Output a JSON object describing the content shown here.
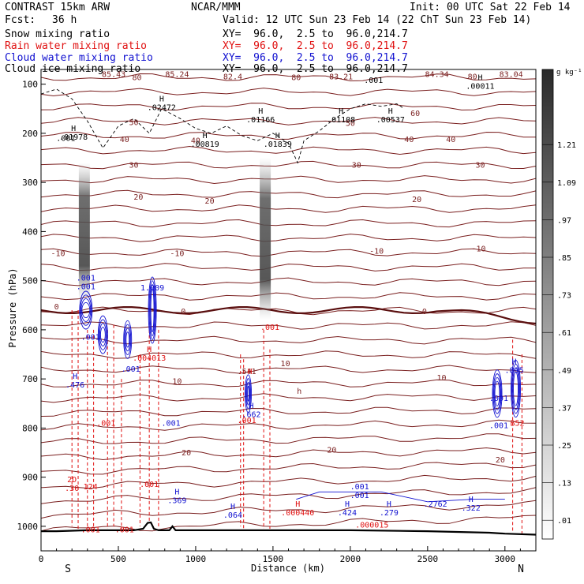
{
  "header": {
    "model": "CONTRAST 15km ARW",
    "center": "NCAR/MMM",
    "init": "Init: 00 UTC Sat 22 Feb 14",
    "fcst_label": "Fcst:",
    "fcst_value": "36 h",
    "valid": "Valid: 12 UTC Sun 23 Feb 14 (22 ChT Sun 23 Feb 14)"
  },
  "fields": [
    {
      "name": "Snow mixing ratio",
      "xy": "XY=  96.0,  2.5 to  96.0,214.7",
      "color": "#000000"
    },
    {
      "name": "Rain water mixing ratio",
      "xy": "XY=  96.0,  2.5 to  96.0,214.7",
      "color": "#e01010"
    },
    {
      "name": "Cloud water mixing ratio",
      "xy": "XY=  96.0,  2.5 to  96.0,214.7",
      "color": "#1010d0"
    },
    {
      "name": "Cloud ice mixing ratio",
      "xy": "XY=  96.0,  2.5 to  96.0,214.7",
      "color": "#000000"
    }
  ],
  "colorbar": {
    "unit": "g kg⁻¹",
    "ticks": [
      ".01",
      ".13",
      ".25",
      ".37",
      ".49",
      ".61",
      ".73",
      ".85",
      ".97",
      "1.09",
      "1.21"
    ]
  },
  "chart_data": {
    "type": "cross-section",
    "xlabel": "Distance (km)",
    "ylabel": "Pressure (hPa)",
    "xlim": [
      0,
      3200
    ],
    "ylim": [
      1050,
      70
    ],
    "x_ticks": [
      "0",
      "500",
      "1000",
      "1500",
      "2000",
      "2500",
      "3000"
    ],
    "y_ticks": [
      "100",
      "200",
      "300",
      "400",
      "500",
      "600",
      "700",
      "800",
      "900",
      "1000"
    ],
    "ends": {
      "left": "S",
      "right": "N"
    },
    "temperature_labels": [
      {
        "x": 470,
        "p": 85,
        "text": "85.43"
      },
      {
        "x": 880,
        "p": 85,
        "text": "85.24"
      },
      {
        "x": 1240,
        "p": 90,
        "text": "82.4"
      },
      {
        "x": 1940,
        "p": 90,
        "text": "83.21"
      },
      {
        "x": 2560,
        "p": 85,
        "text": "84.34"
      },
      {
        "x": 3040,
        "p": 85,
        "text": "83.04"
      },
      {
        "x": 620,
        "p": 92,
        "text": "80"
      },
      {
        "x": 1650,
        "p": 92,
        "text": "80"
      },
      {
        "x": 2790,
        "p": 90,
        "text": "80"
      },
      {
        "x": 2420,
        "p": 165,
        "text": "60"
      },
      {
        "x": 600,
        "p": 183,
        "text": "50"
      },
      {
        "x": 2000,
        "p": 185,
        "text": "50"
      },
      {
        "x": 540,
        "p": 218,
        "text": "40"
      },
      {
        "x": 1000,
        "p": 220,
        "text": "40"
      },
      {
        "x": 2380,
        "p": 218,
        "text": "40"
      },
      {
        "x": 2650,
        "p": 218,
        "text": "40"
      },
      {
        "x": 600,
        "p": 270,
        "text": "30"
      },
      {
        "x": 2040,
        "p": 270,
        "text": "30"
      },
      {
        "x": 2840,
        "p": 270,
        "text": "30"
      },
      {
        "x": 630,
        "p": 335,
        "text": "20"
      },
      {
        "x": 1090,
        "p": 343,
        "text": "20"
      },
      {
        "x": 2430,
        "p": 340,
        "text": "20"
      },
      {
        "x": 110,
        "p": 450,
        "text": "-10"
      },
      {
        "x": 880,
        "p": 450,
        "text": "-10"
      },
      {
        "x": 2170,
        "p": 445,
        "text": "-10"
      },
      {
        "x": 2830,
        "p": 440,
        "text": "-10"
      },
      {
        "x": 100,
        "p": 558,
        "text": "0"
      },
      {
        "x": 920,
        "p": 568,
        "text": "0"
      },
      {
        "x": 2480,
        "p": 568,
        "text": "0"
      },
      {
        "x": 1580,
        "p": 674,
        "text": "10"
      },
      {
        "x": 880,
        "p": 710,
        "text": "10"
      },
      {
        "x": 2590,
        "p": 703,
        "text": "10"
      },
      {
        "x": 940,
        "p": 856,
        "text": "20"
      },
      {
        "x": 1880,
        "p": 850,
        "text": "20"
      },
      {
        "x": 2970,
        "p": 870,
        "text": "20"
      },
      {
        "x": 1670,
        "p": 730,
        "text": "h"
      },
      {
        "x": 1330,
        "p": 690,
        "text": ".541"
      }
    ],
    "cloud_ice_labels": [
      {
        "x": 210,
        "p": 195,
        "text": "H",
        "sub": ".01978"
      },
      {
        "x": 780,
        "p": 135,
        "text": "H",
        "sub": ".02472"
      },
      {
        "x": 1420,
        "p": 160,
        "text": "H",
        "sub": ".01166"
      },
      {
        "x": 1060,
        "p": 210,
        "text": "H",
        "sub": ".00819"
      },
      {
        "x": 1530,
        "p": 210,
        "text": "H",
        "sub": ".01839"
      },
      {
        "x": 1940,
        "p": 160,
        "text": "H",
        "sub": ".01108"
      },
      {
        "x": 2260,
        "p": 160,
        "text": "H",
        "sub": ".00537"
      },
      {
        "x": 2840,
        "p": 92,
        "text": "H",
        "sub": ".00011"
      },
      {
        "x": 2150,
        "p": 97,
        "text": ".001",
        "sub": ""
      },
      {
        "x": 160,
        "p": 215,
        "text": ".001",
        "sub": ""
      }
    ],
    "rain_labels": [
      {
        "x": 200,
        "p": 910,
        "text": "2D",
        "sub": ".30"
      },
      {
        "x": 320,
        "p": 925,
        "text": "124",
        "sub": ""
      },
      {
        "x": 700,
        "p": 645,
        "text": "H",
        "sub": ".004013"
      },
      {
        "x": 1350,
        "p": 690,
        "text": "H",
        "sub": ""
      },
      {
        "x": 1480,
        "p": 600,
        "text": ".001",
        "sub": ""
      },
      {
        "x": 1660,
        "p": 960,
        "text": "H",
        "sub": ".000440"
      },
      {
        "x": 2140,
        "p": 985,
        "text": "",
        "sub": ".000015"
      },
      {
        "x": 1330,
        "p": 790,
        "text": ".001",
        "sub": ""
      },
      {
        "x": 420,
        "p": 795,
        "text": ".001",
        "sub": ""
      },
      {
        "x": 700,
        "p": 920,
        "text": ".001",
        "sub": ""
      },
      {
        "x": 320,
        "p": 1012,
        "text": ".001",
        "sub": ""
      },
      {
        "x": 540,
        "p": 1012,
        "text": ".001",
        "sub": ""
      },
      {
        "x": 3080,
        "p": 795,
        "text": "B52",
        "sub": ""
      }
    ],
    "cloud_water_labels": [
      {
        "x": 220,
        "p": 700,
        "text": "H",
        "sub": ".476"
      },
      {
        "x": 290,
        "p": 500,
        "text": ".001",
        "sub": ".001"
      },
      {
        "x": 720,
        "p": 520,
        "text": "1.009",
        "sub": ""
      },
      {
        "x": 880,
        "p": 935,
        "text": "H",
        "sub": ".369"
      },
      {
        "x": 1240,
        "p": 965,
        "text": "H",
        "sub": ".064"
      },
      {
        "x": 1360,
        "p": 760,
        "text": "H",
        "sub": ".662"
      },
      {
        "x": 1980,
        "p": 960,
        "text": "H",
        "sub": ".424"
      },
      {
        "x": 2060,
        "p": 925,
        "text": ".001",
        "sub": ".001"
      },
      {
        "x": 2250,
        "p": 960,
        "text": "H",
        "sub": ".279"
      },
      {
        "x": 2550,
        "p": 960,
        "text": ".2762",
        "sub": ""
      },
      {
        "x": 2780,
        "p": 950,
        "text": "H",
        "sub": ".322"
      },
      {
        "x": 3060,
        "p": 670,
        "text": "H",
        "sub": ".895"
      },
      {
        "x": 2960,
        "p": 745,
        "text": ".001",
        "sub": ""
      },
      {
        "x": 2960,
        "p": 800,
        "text": ".001",
        "sub": ""
      },
      {
        "x": 840,
        "p": 795,
        "text": ".001",
        "sub": ""
      },
      {
        "x": 580,
        "p": 685,
        "text": ".001",
        "sub": ""
      },
      {
        "x": 320,
        "p": 620,
        "text": ".001",
        "sub": ""
      }
    ],
    "terrain": [
      [
        0,
        1010
      ],
      [
        100,
        1010
      ],
      [
        200,
        1009
      ],
      [
        300,
        1008
      ],
      [
        400,
        1008
      ],
      [
        500,
        1008
      ],
      [
        600,
        1008
      ],
      [
        660,
        1005
      ],
      [
        690,
        993
      ],
      [
        710,
        992
      ],
      [
        730,
        1005
      ],
      [
        760,
        1008
      ],
      [
        830,
        1008
      ],
      [
        850,
        1000
      ],
      [
        870,
        1008
      ],
      [
        1000,
        1008
      ],
      [
        1500,
        1008
      ],
      [
        2000,
        1008
      ],
      [
        2500,
        1010
      ],
      [
        2900,
        1013
      ],
      [
        3000,
        1015
      ],
      [
        3200,
        1017
      ]
    ],
    "snow_columns": [
      {
        "x": 280,
        "top": 260,
        "bottom": 540
      },
      {
        "x": 1450,
        "top": 250,
        "bottom": 580
      }
    ]
  }
}
